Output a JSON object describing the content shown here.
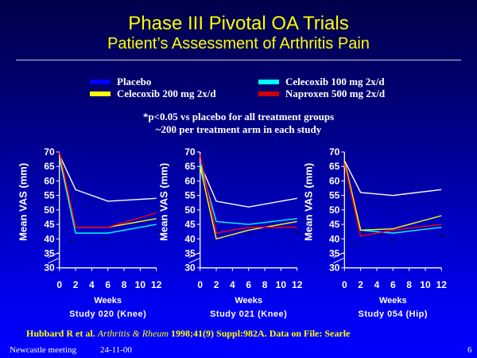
{
  "header": {
    "title": "Phase III Pivotal OA Trials",
    "subtitle": "Patient’s Assessment of Arthritis Pain"
  },
  "legend": [
    {
      "label": "Placebo",
      "color": "#0000ff"
    },
    {
      "label": "Celecoxib 100 mg 2x/d",
      "color": "#00ffff"
    },
    {
      "label": "Celecoxib 200 mg 2x/d",
      "color": "#ffff00"
    },
    {
      "label": "Naproxen 500 mg 2x/d",
      "color": "#cc0000"
    }
  ],
  "notes": [
    "*p<0.05 vs placebo for all treatment groups",
    "~200 per treatment arm in each study"
  ],
  "chart_data": [
    {
      "type": "line",
      "title": "Study 020 (Knee)",
      "xlabel": "Weeks",
      "ylabel": "Mean VAS (mm)",
      "xlim": [
        0,
        12
      ],
      "ylim": [
        30,
        70
      ],
      "xticks": [
        "0",
        "2",
        "4",
        "6",
        "8",
        "10",
        "12"
      ],
      "yticks": [
        "30",
        "35",
        "40",
        "45",
        "50",
        "55",
        "60",
        "65",
        "70"
      ],
      "x": [
        0,
        2,
        6,
        12
      ],
      "series": [
        {
          "name": "Placebo",
          "color": "#ffffff",
          "values": [
            69,
            57,
            53,
            54
          ]
        },
        {
          "name": "Celecoxib 100 mg 2x/d",
          "color": "#00ffff",
          "values": [
            68,
            42,
            42,
            45
          ]
        },
        {
          "name": "Celecoxib 200 mg 2x/d",
          "color": "#ffff00",
          "values": [
            69,
            44,
            44,
            47
          ]
        },
        {
          "name": "Naproxen 500 mg 2x/d",
          "color": "#ff0000",
          "values": [
            70,
            44,
            44,
            49
          ]
        }
      ],
      "annotations": [
        {
          "text": "*",
          "x": 1.5,
          "y": 39
        },
        {
          "text": "*",
          "x": 5.8,
          "y": 40
        },
        {
          "text": "*",
          "x": 12,
          "y": 42.5
        }
      ]
    },
    {
      "type": "line",
      "title": "Study 021 (Knee)",
      "xlabel": "Weeks",
      "ylabel": "Mean VAS (mm)",
      "xlim": [
        0,
        12
      ],
      "ylim": [
        30,
        70
      ],
      "xticks": [
        "0",
        "2",
        "4",
        "6",
        "8",
        "10",
        "12"
      ],
      "yticks": [
        "30",
        "35",
        "40",
        "45",
        "50",
        "55",
        "60",
        "65",
        "70"
      ],
      "x": [
        0,
        2,
        6,
        12
      ],
      "series": [
        {
          "name": "Placebo",
          "color": "#ffffff",
          "values": [
            66,
            53,
            51,
            54
          ]
        },
        {
          "name": "Celecoxib 100 mg 2x/d",
          "color": "#00ffff",
          "values": [
            66,
            46,
            45,
            47
          ]
        },
        {
          "name": "Celecoxib 200 mg 2x/d",
          "color": "#ffff00",
          "values": [
            65,
            40,
            43,
            46
          ]
        },
        {
          "name": "Naproxen 500 mg 2x/d",
          "color": "#ff0000",
          "values": [
            69,
            42,
            44,
            44
          ]
        }
      ],
      "annotations": [
        {
          "text": "*",
          "x": 1.5,
          "y": 38
        },
        {
          "text": "*",
          "x": 6,
          "y": 41.5
        },
        {
          "text": "*",
          "x": 12,
          "y": 42
        }
      ]
    },
    {
      "type": "line",
      "title": "Study 054 (Hip)",
      "xlabel": "Weeks",
      "ylabel": "Mean VAS (mm)",
      "xlim": [
        0,
        12
      ],
      "ylim": [
        30,
        70
      ],
      "xticks": [
        "0",
        "2",
        "4",
        "6",
        "8",
        "10",
        "12"
      ],
      "yticks": [
        "30",
        "35",
        "40",
        "45",
        "50",
        "55",
        "60",
        "65",
        "70"
      ],
      "x": [
        0,
        2,
        6,
        12
      ],
      "series": [
        {
          "name": "Placebo",
          "color": "#ffffff",
          "values": [
            67,
            56,
            55,
            57
          ]
        },
        {
          "name": "Celecoxib 100 mg 2x/d",
          "color": "#00ffff",
          "values": [
            66,
            43,
            42,
            44
          ]
        },
        {
          "name": "Celecoxib 200 mg 2x/d",
          "color": "#ffff00",
          "values": [
            67,
            43,
            43.5,
            48
          ]
        },
        {
          "name": "Naproxen 500 mg 2x/d",
          "color": "#ff0000",
          "values": [
            66,
            41,
            43,
            45
          ]
        }
      ],
      "annotations": [
        {
          "text": "*",
          "x": 1.5,
          "y": 38
        },
        {
          "text": "*",
          "x": 5.8,
          "y": 39.5
        },
        {
          "text": "*",
          "x": 12,
          "y": 41
        }
      ]
    }
  ],
  "reference": {
    "prefix": "Hubbard R  et al. ",
    "journal": "Arthritis & Rheum",
    "suffix": " 1998;41(9) Suppl:982A.   Data on File: Searle"
  },
  "footer": {
    "meeting": "Newcastle meeting",
    "date": "24-11-00",
    "page": "6"
  }
}
